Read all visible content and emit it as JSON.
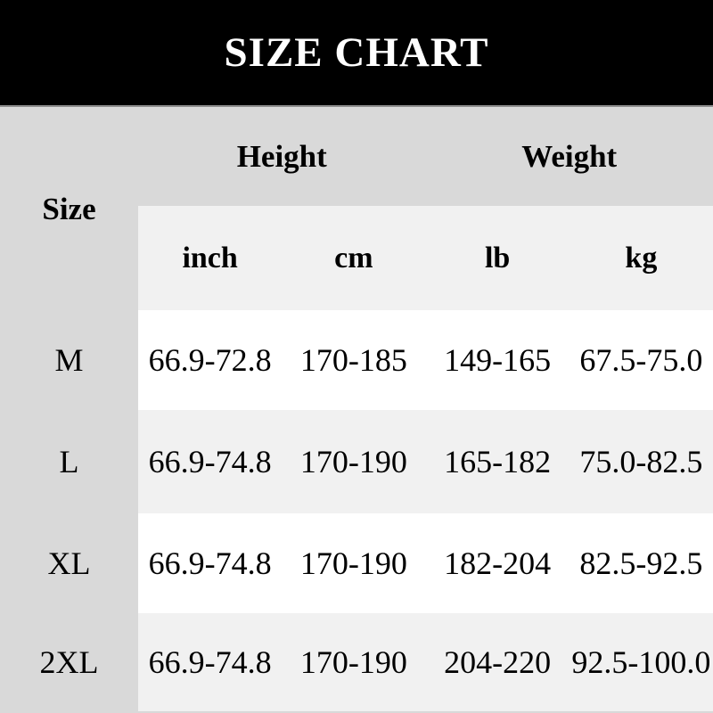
{
  "title": "SIZE CHART",
  "chart_data": {
    "type": "table",
    "title": "SIZE CHART",
    "corner_header": "Size",
    "group_headers": [
      {
        "label": "Height",
        "columns": [
          "inch",
          "cm"
        ]
      },
      {
        "label": "Weight",
        "columns": [
          "lb",
          "kg"
        ]
      }
    ],
    "column_headers": [
      "inch",
      "cm",
      "lb",
      "kg"
    ],
    "rows": [
      {
        "size": "M",
        "height_inch": "66.9-72.8",
        "height_cm": "170-185",
        "weight_lb": "149-165",
        "weight_kg": "67.5-75.0"
      },
      {
        "size": "L",
        "height_inch": "66.9-74.8",
        "height_cm": "170-190",
        "weight_lb": "165-182",
        "weight_kg": "75.0-82.5"
      },
      {
        "size": "XL",
        "height_inch": "66.9-74.8",
        "height_cm": "170-190",
        "weight_lb": "182-204",
        "weight_kg": "82.5-92.5"
      },
      {
        "size": "2XL",
        "height_inch": "66.9-74.8",
        "height_cm": "170-190",
        "weight_lb": "204-220",
        "weight_kg": "92.5-100.0"
      }
    ],
    "layout": {
      "row_banding": [
        "light",
        "white",
        "light",
        "white",
        "light"
      ],
      "header_span_note": "Height spans inch+cm, Weight spans lb+kg, Size spans both header rows"
    }
  },
  "colors": {
    "banner_background": "#000000",
    "banner_text": "#ffffff",
    "banner_divider": "#8c8c8c",
    "page_background": "#d9d9d9",
    "band_light": "#f1f1f1",
    "band_white": "#ffffff",
    "table_text": "#000000"
  }
}
